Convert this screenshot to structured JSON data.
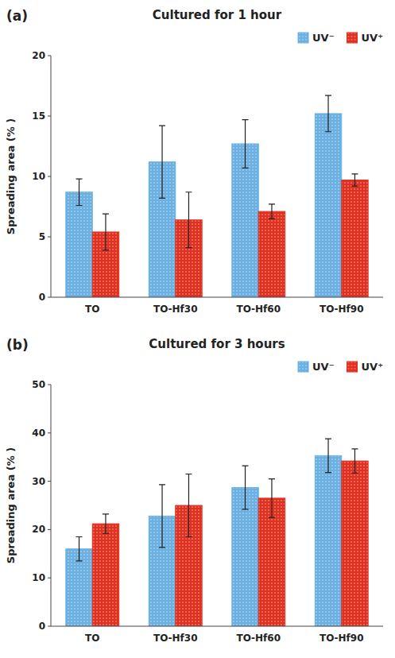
{
  "chart_data": [
    {
      "type": "bar",
      "title": "Cultured for 1 hour",
      "annotations": [
        {
          "text": "(a)"
        }
      ],
      "categories": [
        "TO",
        "TO-Hf30",
        "TO-Hf60",
        "TO-Hf90"
      ],
      "series": [
        {
          "name": "UV⁻",
          "color": "#6ab0e0",
          "values": [
            8.7,
            11.2,
            12.7,
            15.2
          ],
          "errors": [
            1.1,
            3.0,
            2.0,
            1.5
          ]
        },
        {
          "name": "UV⁺",
          "color": "#e03020",
          "values": [
            5.4,
            6.4,
            7.1,
            9.7
          ],
          "errors": [
            1.5,
            2.3,
            0.6,
            0.5
          ]
        }
      ],
      "y_label": "Spreading area (% )",
      "ylim": [
        0,
        20
      ],
      "yticks": [
        0,
        5,
        10,
        15,
        20
      ],
      "grid": false,
      "legend": "upper right"
    },
    {
      "type": "bar",
      "title": "Cultured for 3 hours",
      "annotations": [
        {
          "text": "(b)"
        }
      ],
      "categories": [
        "TO",
        "TO-Hf30",
        "TO-Hf60",
        "TO-Hf90"
      ],
      "series": [
        {
          "name": "UV⁻",
          "color": "#6ab0e0",
          "values": [
            16.0,
            22.8,
            28.7,
            35.3
          ],
          "errors": [
            2.5,
            6.5,
            4.5,
            3.5
          ]
        },
        {
          "name": "UV⁺",
          "color": "#e03020",
          "values": [
            21.2,
            25.0,
            26.5,
            34.2
          ],
          "errors": [
            2.0,
            6.5,
            4.0,
            2.5
          ]
        }
      ],
      "y_label": "Spreading area (% )",
      "ylim": [
        0,
        50
      ],
      "yticks": [
        0,
        10,
        20,
        30,
        40,
        50
      ],
      "grid": false,
      "legend": "upper right"
    }
  ]
}
